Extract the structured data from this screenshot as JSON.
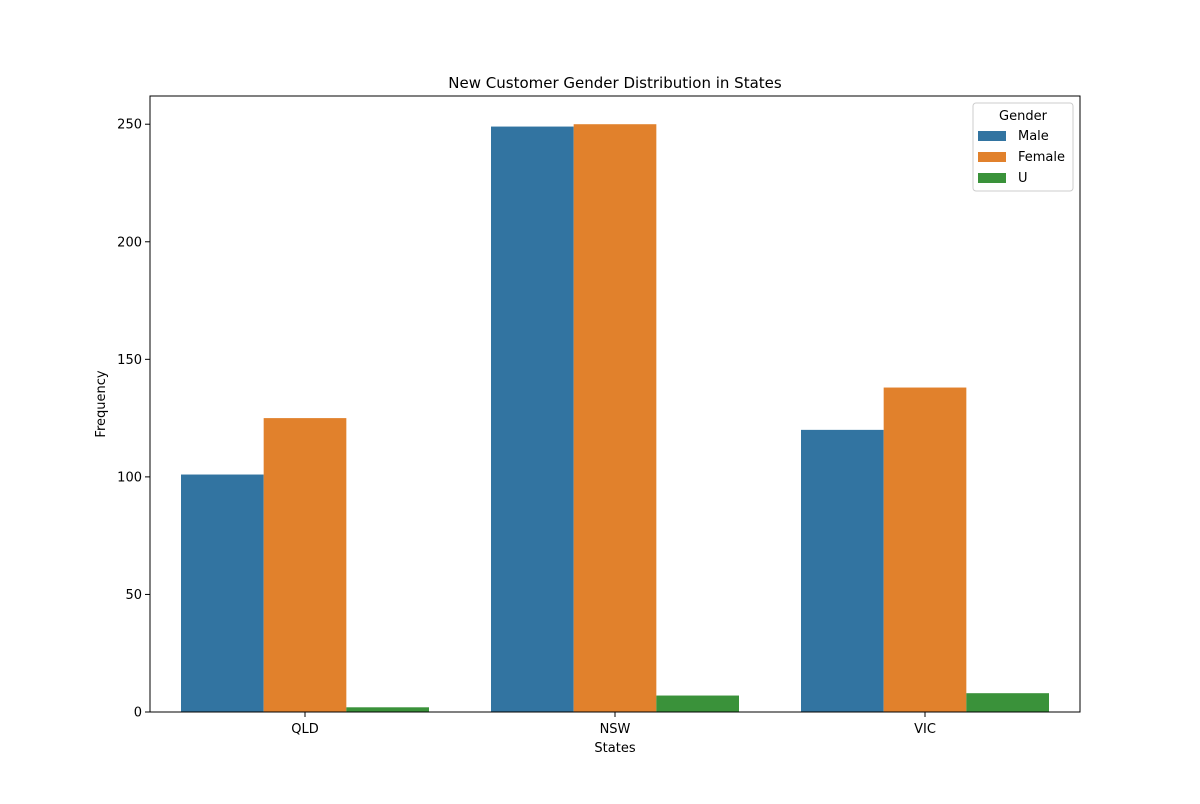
{
  "chart_data": {
    "type": "bar",
    "title": "New Customer Gender Distribution in States",
    "xlabel": "States",
    "ylabel": "Frequency",
    "categories": [
      "QLD",
      "NSW",
      "VIC"
    ],
    "ylim": [
      0,
      262
    ],
    "yticks": [
      0,
      50,
      100,
      150,
      200,
      250
    ],
    "grid": false,
    "legend": {
      "title": "Gender",
      "placement": "top-right"
    },
    "series": [
      {
        "name": "Male",
        "color": "#3274a1",
        "values": [
          101,
          249,
          120
        ]
      },
      {
        "name": "Female",
        "color": "#e1812c",
        "values": [
          125,
          250,
          138
        ]
      },
      {
        "name": "U",
        "color": "#3a923a",
        "values": [
          2,
          7,
          8
        ]
      }
    ]
  }
}
